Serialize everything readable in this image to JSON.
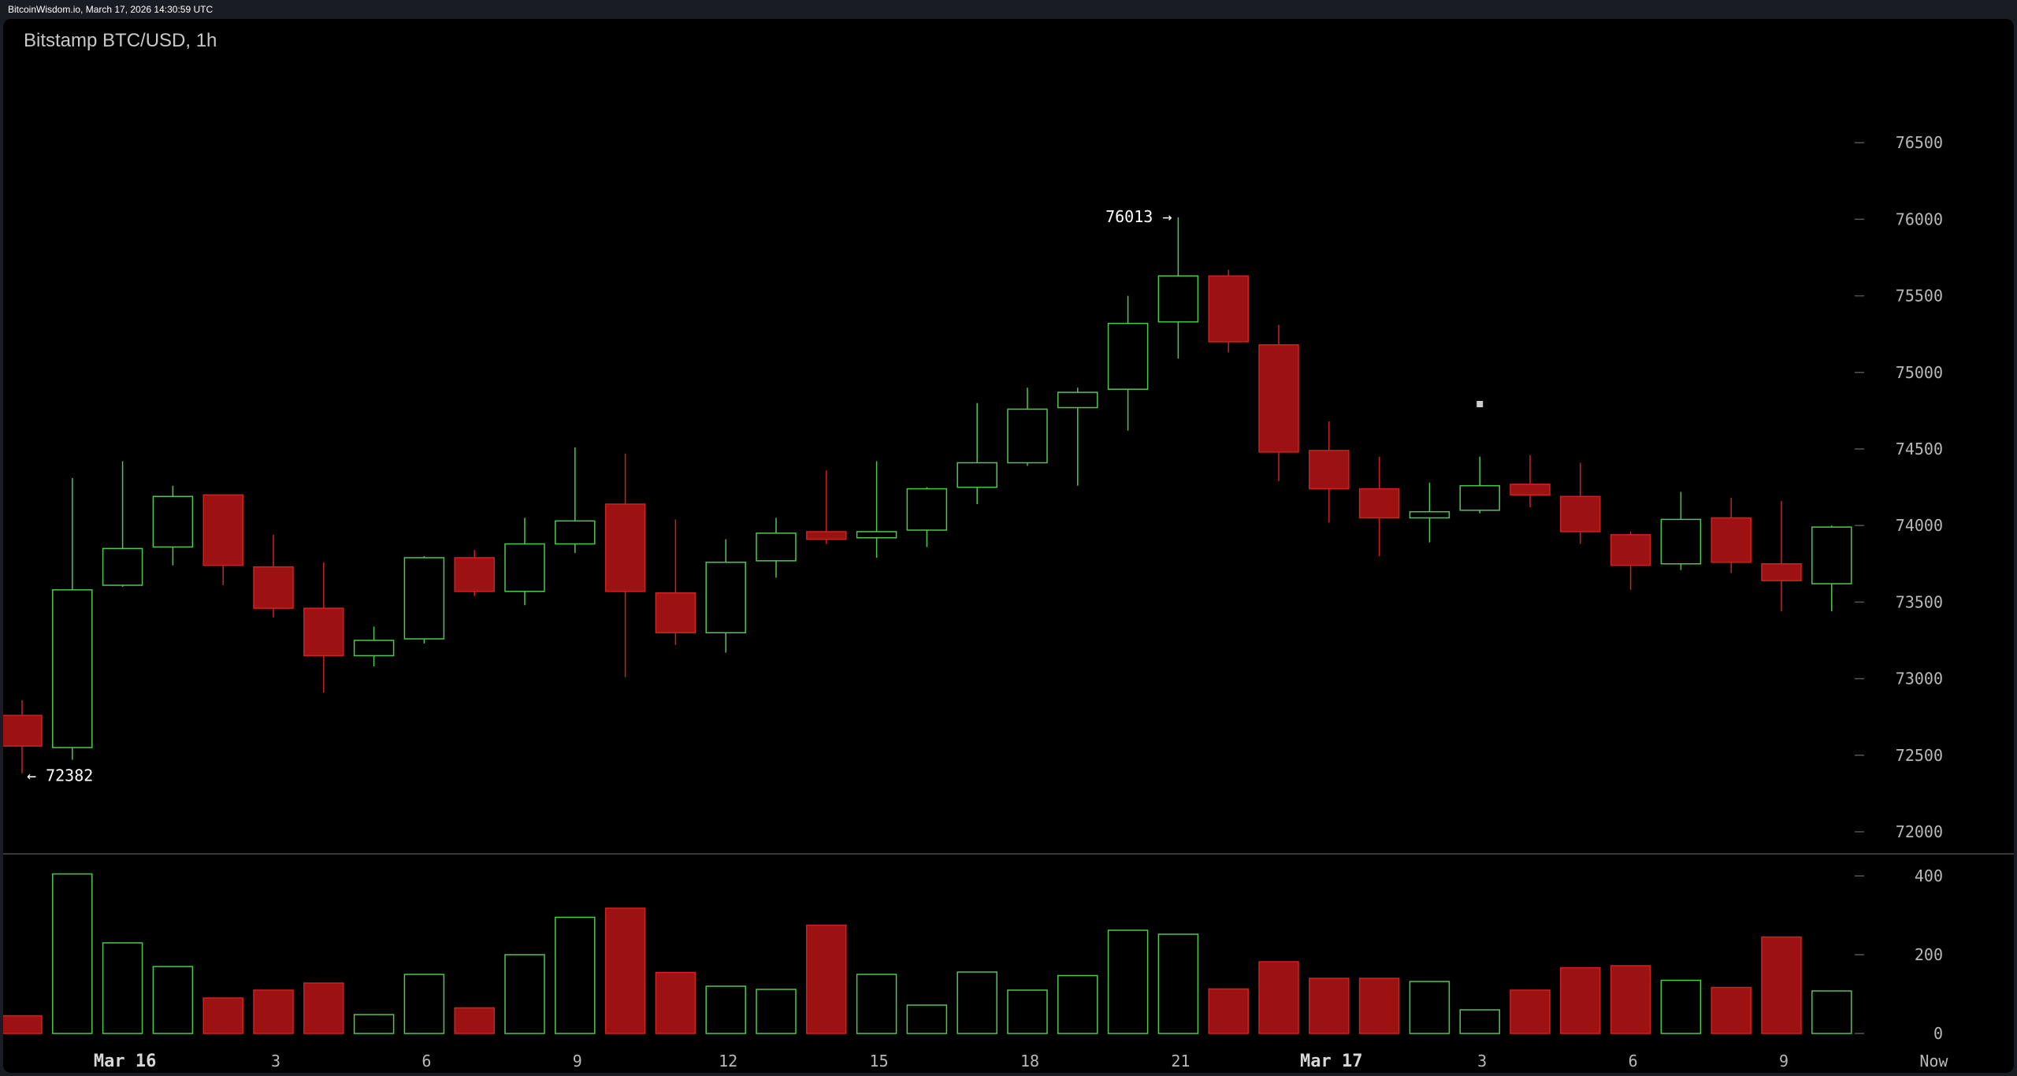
{
  "header": {
    "site_info": "BitcoinWisdom.io, March 17, 2026 14:30:59 UTC",
    "chart_title": "Bitstamp BTC/USD, 1h"
  },
  "colors": {
    "background": "#000000",
    "frame": "#1a1c24",
    "up": "#4ec84e",
    "down": "#9c1212",
    "down_edge": "#cc2222",
    "grid_tick": "#555555",
    "label": "#b8b8b8"
  },
  "annotations": {
    "high_label": "76013 →",
    "low_label": "← 72382"
  },
  "chart_data": [
    {
      "type": "candlestick",
      "title": "Bitstamp BTC/USD, 1h",
      "y_ticks": [
        72000,
        72500,
        73000,
        73500,
        74000,
        74500,
        75000,
        75500,
        76000,
        76500
      ],
      "y_tick_labels": [
        "72000",
        "72500",
        "73000",
        "73500",
        "74000",
        "74500",
        "75000",
        "75500",
        "76000",
        "76500"
      ],
      "ylim": [
        71650,
        77000
      ],
      "x_tick_labels": [
        {
          "index": 2,
          "label": "Mar 16",
          "bold": true
        },
        {
          "index": 5,
          "label": "3"
        },
        {
          "index": 8,
          "label": "6"
        },
        {
          "index": 11,
          "label": "9"
        },
        {
          "index": 14,
          "label": "12"
        },
        {
          "index": 17,
          "label": "15"
        },
        {
          "index": 20,
          "label": "18"
        },
        {
          "index": 23,
          "label": "21"
        },
        {
          "index": 26,
          "label": "Mar 17",
          "bold": true
        },
        {
          "index": 29,
          "label": "3"
        },
        {
          "index": 32,
          "label": "6"
        },
        {
          "index": 35,
          "label": "9"
        },
        {
          "index": 38,
          "label": "Now"
        }
      ],
      "high": 76013,
      "low": 72382,
      "candles": [
        {
          "o": 72760,
          "h": 72860,
          "l": 72382,
          "c": 72560
        },
        {
          "o": 72550,
          "h": 74310,
          "l": 72470,
          "c": 73580
        },
        {
          "o": 73610,
          "h": 74420,
          "l": 73600,
          "c": 73850
        },
        {
          "o": 73860,
          "h": 74260,
          "l": 73740,
          "c": 74190
        },
        {
          "o": 74200,
          "h": 74200,
          "l": 73610,
          "c": 73740
        },
        {
          "o": 73730,
          "h": 73940,
          "l": 73400,
          "c": 73460
        },
        {
          "o": 73460,
          "h": 73760,
          "l": 72910,
          "c": 73150
        },
        {
          "o": 73150,
          "h": 73340,
          "l": 73080,
          "c": 73250
        },
        {
          "o": 73260,
          "h": 73800,
          "l": 73230,
          "c": 73790
        },
        {
          "o": 73790,
          "h": 73840,
          "l": 73540,
          "c": 73570
        },
        {
          "o": 73570,
          "h": 74050,
          "l": 73480,
          "c": 73880
        },
        {
          "o": 73880,
          "h": 74510,
          "l": 73820,
          "c": 74030
        },
        {
          "o": 74140,
          "h": 74470,
          "l": 73010,
          "c": 73570
        },
        {
          "o": 73560,
          "h": 74040,
          "l": 73220,
          "c": 73300
        },
        {
          "o": 73300,
          "h": 73910,
          "l": 73170,
          "c": 73760
        },
        {
          "o": 73770,
          "h": 74050,
          "l": 73660,
          "c": 73950
        },
        {
          "o": 73960,
          "h": 74360,
          "l": 73880,
          "c": 73910
        },
        {
          "o": 73920,
          "h": 74420,
          "l": 73790,
          "c": 73960
        },
        {
          "o": 73970,
          "h": 74250,
          "l": 73860,
          "c": 74240
        },
        {
          "o": 74250,
          "h": 74800,
          "l": 74140,
          "c": 74410
        },
        {
          "o": 74410,
          "h": 74900,
          "l": 74390,
          "c": 74760
        },
        {
          "o": 74770,
          "h": 74900,
          "l": 74260,
          "c": 74870
        },
        {
          "o": 74890,
          "h": 75500,
          "l": 74620,
          "c": 75320
        },
        {
          "o": 75330,
          "h": 76013,
          "l": 75090,
          "c": 75630
        },
        {
          "o": 75630,
          "h": 75670,
          "l": 75130,
          "c": 75200
        },
        {
          "o": 75180,
          "h": 75310,
          "l": 74290,
          "c": 74480
        },
        {
          "o": 74490,
          "h": 74680,
          "l": 74020,
          "c": 74240
        },
        {
          "o": 74240,
          "h": 74450,
          "l": 73800,
          "c": 74050
        },
        {
          "o": 74050,
          "h": 74280,
          "l": 73890,
          "c": 74090
        },
        {
          "o": 74100,
          "h": 74450,
          "l": 74080,
          "c": 74260
        },
        {
          "o": 74270,
          "h": 74460,
          "l": 74120,
          "c": 74200
        },
        {
          "o": 74190,
          "h": 74410,
          "l": 73880,
          "c": 73960
        },
        {
          "o": 73940,
          "h": 73960,
          "l": 73580,
          "c": 73740
        },
        {
          "o": 73750,
          "h": 74220,
          "l": 73710,
          "c": 74040
        },
        {
          "o": 74050,
          "h": 74180,
          "l": 73690,
          "c": 73760
        },
        {
          "o": 73750,
          "h": 74160,
          "l": 73440,
          "c": 73640
        },
        {
          "o": 73620,
          "h": 74000,
          "l": 73440,
          "c": 73990
        }
      ]
    },
    {
      "type": "bar",
      "title": "",
      "y_ticks": [
        0,
        200,
        400
      ],
      "y_tick_labels": [
        "0",
        "200",
        "400"
      ],
      "ylim": [
        0,
        420
      ],
      "values": [
        45,
        405,
        230,
        170,
        90,
        110,
        128,
        48,
        150,
        65,
        200,
        295,
        318,
        155,
        120,
        112,
        275,
        150,
        72,
        156,
        110,
        147,
        262,
        252,
        113,
        182,
        140,
        140,
        132,
        60,
        110,
        167,
        172,
        135,
        117,
        245,
        108
      ],
      "direction": [
        "down",
        "up",
        "up",
        "up",
        "down",
        "down",
        "down",
        "up",
        "up",
        "down",
        "up",
        "up",
        "down",
        "down",
        "up",
        "up",
        "down",
        "up",
        "up",
        "up",
        "up",
        "up",
        "up",
        "up",
        "down",
        "down",
        "down",
        "down",
        "up",
        "up",
        "down",
        "down",
        "down",
        "up",
        "down",
        "down",
        "up"
      ]
    }
  ]
}
